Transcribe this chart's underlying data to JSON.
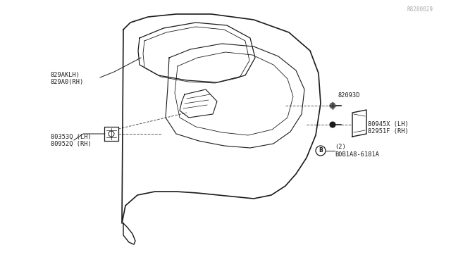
{
  "bg_color": "#ffffff",
  "line_color": "#1a1a1a",
  "text_color": "#1a1a1a",
  "watermark": "R8280029",
  "labels": {
    "top_left_1": "80952Q (RH)",
    "top_left_2": "80353Q (LH)",
    "bottom_left_1": "829A0(RH)",
    "bottom_left_2": "829AKLH)",
    "top_right_1": "B0B1A8-6181A",
    "top_right_2": "(2)",
    "mid_right_1": "82951F (RH)",
    "mid_right_2": "80945X (LH)",
    "bottom_right_1": "82093D"
  },
  "figsize": [
    6.4,
    3.72
  ],
  "dpi": 100
}
